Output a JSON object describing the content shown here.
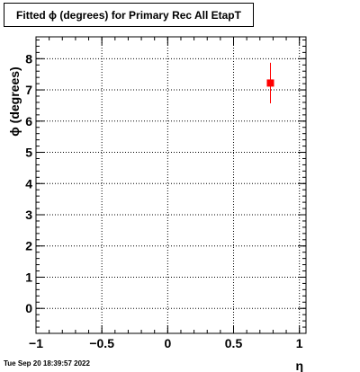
{
  "chart_data": {
    "type": "scatter",
    "title": "Fitted ϕ (degrees) for Primary Rec All EtapT",
    "xlabel": "η",
    "ylabel": "ϕ (degrees)",
    "xlim": [
      -1,
      1.05
    ],
    "ylim": [
      -0.8,
      8.7
    ],
    "x_ticks": [
      -1,
      -0.5,
      0,
      0.5,
      1
    ],
    "x_tick_labels": [
      "−1",
      "−0.5",
      "0",
      "0.5",
      "1"
    ],
    "y_ticks": [
      0,
      1,
      2,
      3,
      4,
      5,
      6,
      7,
      8
    ],
    "grid": true,
    "points": [
      {
        "x": 0.78,
        "y": 7.22,
        "y_err_low": 0.65,
        "y_err_high": 0.65,
        "color": "#ff0000"
      }
    ]
  },
  "footer": {
    "timestamp": "Tue Sep 20 18:39:57 2022"
  }
}
